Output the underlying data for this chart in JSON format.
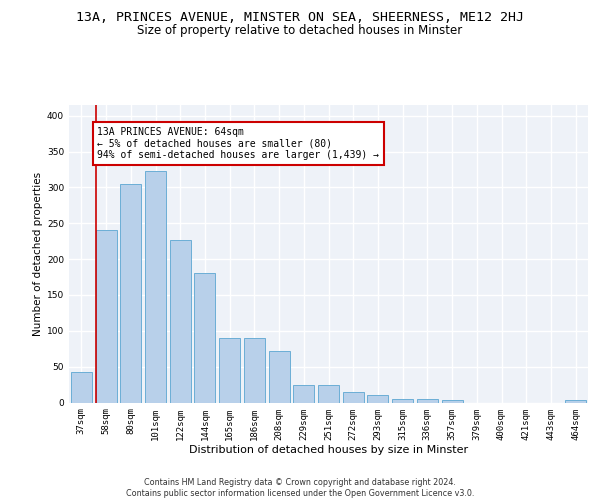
{
  "title_line1": "13A, PRINCES AVENUE, MINSTER ON SEA, SHEERNESS, ME12 2HJ",
  "title_line2": "Size of property relative to detached houses in Minster",
  "xlabel": "Distribution of detached houses by size in Minster",
  "ylabel": "Number of detached properties",
  "categories": [
    "37sqm",
    "58sqm",
    "80sqm",
    "101sqm",
    "122sqm",
    "144sqm",
    "165sqm",
    "186sqm",
    "208sqm",
    "229sqm",
    "251sqm",
    "272sqm",
    "293sqm",
    "315sqm",
    "336sqm",
    "357sqm",
    "379sqm",
    "400sqm",
    "421sqm",
    "443sqm",
    "464sqm"
  ],
  "values": [
    42,
    240,
    305,
    323,
    227,
    180,
    90,
    90,
    72,
    25,
    25,
    15,
    10,
    5,
    5,
    4,
    0,
    0,
    0,
    0,
    4
  ],
  "bar_color": "#b8d0ea",
  "bar_edge_color": "#6baed6",
  "bg_color": "#eef2f8",
  "grid_color": "#ffffff",
  "annotation_box_color": "#cc0000",
  "annotation_line_color": "#cc0000",
  "annotation_text": "13A PRINCES AVENUE: 64sqm\n← 5% of detached houses are smaller (80)\n94% of semi-detached houses are larger (1,439) →",
  "ylim": [
    0,
    415
  ],
  "yticks": [
    0,
    50,
    100,
    150,
    200,
    250,
    300,
    350,
    400
  ],
  "footer": "Contains HM Land Registry data © Crown copyright and database right 2024.\nContains public sector information licensed under the Open Government Licence v3.0.",
  "title_fontsize": 9.5,
  "subtitle_fontsize": 8.5,
  "xlabel_fontsize": 8,
  "ylabel_fontsize": 7.5,
  "tick_fontsize": 6.5,
  "annotation_fontsize": 7,
  "footer_fontsize": 5.8
}
